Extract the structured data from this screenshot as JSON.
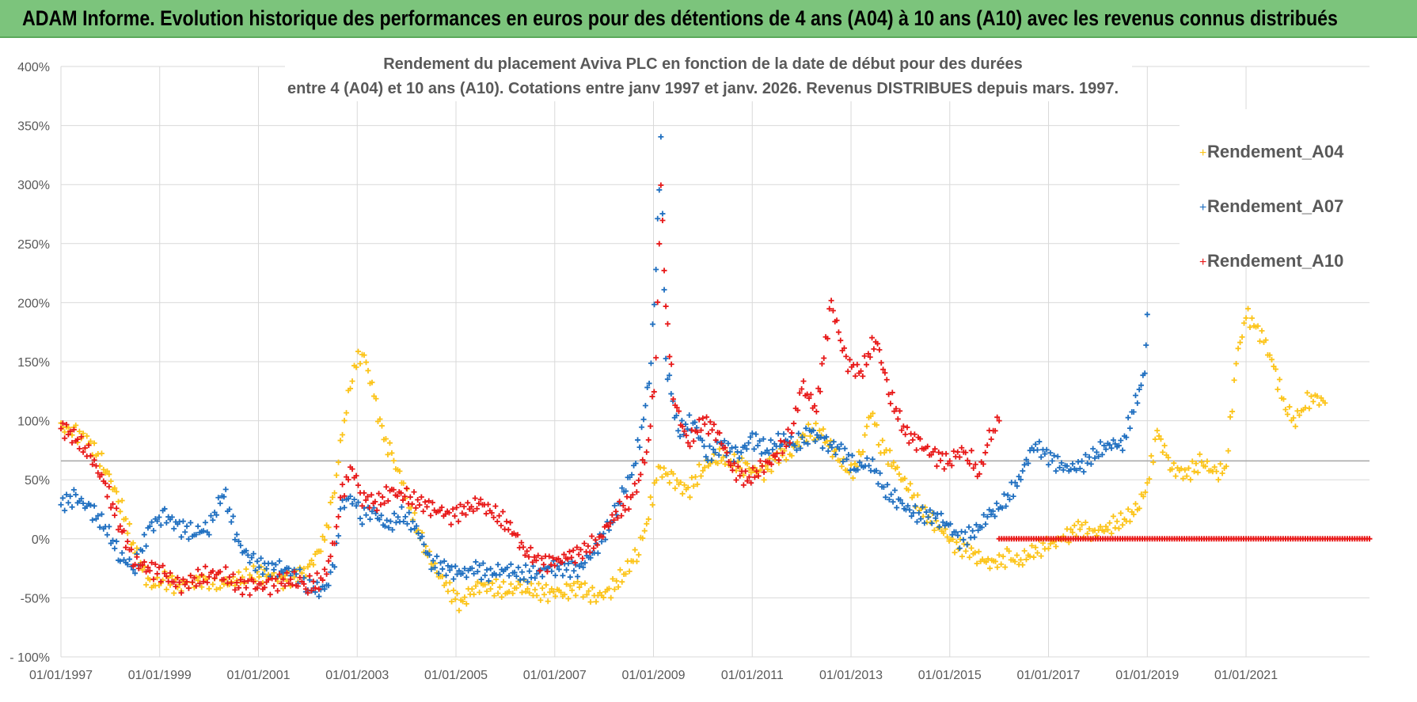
{
  "header": {
    "title": "ADAM Informe. Evolution historique des performances en euros pour des détentions de 4 ans (A04) à 10 ans (A10) avec les revenus connus distribués"
  },
  "colors": {
    "header_bg": "#7cc47c",
    "A04": "#fcc419",
    "A07": "#1f6fc0",
    "A10": "#e81818",
    "grid": "#d9d9d9",
    "reference_line": "#a6a6a6"
  },
  "chart_data": {
    "type": "scatter",
    "title_line1": "Rendement du placement Aviva PLC en fonction de la date de début pour des durées",
    "title_line2": "entre 4 (A04) et 10 ans (A10).  Cotations entre janv 1997 et janv. 2026. Revenus DISTRIBUES depuis mars. 1997.",
    "xlabel": "",
    "ylabel": "",
    "y_unit": "%",
    "ylim": [
      -100,
      400
    ],
    "xlim": [
      1997.0,
      2023.5
    ],
    "reference_line_y": 66,
    "x_tick_values": [
      1997,
      1999,
      2001,
      2003,
      2005,
      2007,
      2009,
      2011,
      2013,
      2015,
      2017,
      2019,
      2021
    ],
    "x_tick_labels": [
      "01/01/1997",
      "01/01/1999",
      "01/01/2001",
      "01/01/2003",
      "01/01/2005",
      "01/01/2007",
      "01/01/2009",
      "01/01/2011",
      "01/01/2013",
      "01/01/2015",
      "01/01/2017",
      "01/01/2019",
      "01/01/2021"
    ],
    "y_ticks": [
      -100,
      -50,
      0,
      50,
      100,
      150,
      200,
      250,
      300,
      350,
      400
    ],
    "y_tick_labels": [
      "- 100%",
      "-50%",
      "0%",
      "50%",
      "100%",
      "150%",
      "200%",
      "250%",
      "300%",
      "350%",
      "400%"
    ],
    "legend_position": "right",
    "series": [
      {
        "name": "Rendement_A04",
        "color": "#fcc419",
        "x": [
          1997.0,
          1997.3,
          1997.6,
          1997.9,
          1998.2,
          1998.5,
          1998.8,
          1999.1,
          1999.4,
          1999.7,
          2000.0,
          2000.3,
          2000.6,
          2000.9,
          2001.2,
          2001.5,
          2001.8,
          2002.0,
          2002.3,
          2002.5,
          2002.7,
          2002.9,
          2003.1,
          2003.3,
          2003.5,
          2003.7,
          2003.9,
          2004.2,
          2004.5,
          2004.8,
          2005.1,
          2005.4,
          2005.7,
          2006.0,
          2006.3,
          2006.6,
          2006.9,
          2007.2,
          2007.5,
          2007.8,
          2008.1,
          2008.4,
          2008.7,
          2008.9,
          2009.1,
          2009.4,
          2009.7,
          2010.0,
          2010.3,
          2010.6,
          2010.9,
          2011.2,
          2011.5,
          2011.8,
          2012.1,
          2012.4,
          2012.7,
          2013.0,
          2013.2,
          2013.4,
          2013.6,
          2013.9,
          2014.2,
          2014.5,
          2014.8,
          2015.1,
          2015.4,
          2015.7,
          2016.0,
          2016.2,
          2016.4,
          2016.7,
          2017.0,
          2017.3,
          2017.6,
          2017.9,
          2018.2,
          2018.5,
          2018.8,
          2019.0,
          2019.2,
          2019.5,
          2019.8,
          2020.1,
          2020.4,
          2020.6,
          2020.8,
          2021.0,
          2021.2,
          2021.4,
          2021.6,
          2021.8,
          2022.0,
          2022.2,
          2022.4,
          2022.6
        ],
        "y": [
          95,
          90,
          80,
          60,
          30,
          -10,
          -40,
          -35,
          -40,
          -35,
          -35,
          -38,
          -35,
          -30,
          -30,
          -35,
          -30,
          -25,
          -5,
          30,
          90,
          140,
          160,
          130,
          90,
          70,
          50,
          10,
          -20,
          -40,
          -55,
          -40,
          -40,
          -45,
          -40,
          -45,
          -45,
          -45,
          -40,
          -50,
          -45,
          -30,
          -10,
          20,
          60,
          50,
          40,
          60,
          70,
          65,
          60,
          55,
          70,
          75,
          90,
          90,
          70,
          55,
          70,
          110,
          80,
          60,
          40,
          20,
          10,
          -5,
          -10,
          -20,
          -20,
          -15,
          -20,
          -10,
          -5,
          0,
          10,
          5,
          10,
          15,
          25,
          45,
          90,
          60,
          55,
          65,
          55,
          60,
          150,
          190,
          180,
          165,
          140,
          110,
          100,
          115,
          120,
          115
        ]
      },
      {
        "name": "Rendement_A07",
        "color": "#1f6fc0",
        "x": [
          1997.0,
          1997.3,
          1997.6,
          1997.9,
          1998.2,
          1998.5,
          1998.8,
          1999.1,
          1999.4,
          1999.7,
          2000.0,
          2000.3,
          2000.6,
          2000.9,
          2001.2,
          2001.5,
          2001.8,
          2002.0,
          2002.3,
          2002.5,
          2002.7,
          2002.9,
          2003.1,
          2003.3,
          2003.6,
          2003.9,
          2004.2,
          2004.5,
          2004.8,
          2005.1,
          2005.4,
          2005.7,
          2006.0,
          2006.3,
          2006.6,
          2006.9,
          2007.2,
          2007.5,
          2007.8,
          2008.1,
          2008.4,
          2008.6,
          2008.8,
          2008.95,
          2009.05,
          2009.15,
          2009.25,
          2009.5,
          2009.8,
          2010.1,
          2010.4,
          2010.7,
          2011.0,
          2011.3,
          2011.6,
          2011.9,
          2012.2,
          2012.5,
          2012.8,
          2013.1,
          2013.4,
          2013.7,
          2014.0,
          2014.3,
          2014.6,
          2014.9,
          2015.2,
          2015.5,
          2015.8,
          2016.1,
          2016.4,
          2016.7,
          2017.0,
          2017.3,
          2017.6,
          2017.9,
          2018.2,
          2018.5,
          2018.8,
          2018.95,
          2019.0
        ],
        "y": [
          30,
          35,
          25,
          10,
          -15,
          -25,
          10,
          20,
          10,
          5,
          10,
          40,
          -5,
          -20,
          -25,
          -25,
          -30,
          -40,
          -45,
          -30,
          30,
          35,
          20,
          25,
          10,
          20,
          10,
          -20,
          -25,
          -30,
          -25,
          -30,
          -25,
          -30,
          -30,
          -25,
          -25,
          -25,
          -10,
          10,
          40,
          60,
          100,
          150,
          230,
          340,
          150,
          90,
          100,
          70,
          80,
          70,
          85,
          75,
          85,
          80,
          90,
          80,
          75,
          60,
          65,
          40,
          30,
          20,
          20,
          15,
          0,
          5,
          20,
          30,
          50,
          80,
          70,
          60,
          60,
          70,
          80,
          80,
          120,
          140,
          190
        ]
      },
      {
        "name": "Rendement_A10",
        "color": "#e81818",
        "x": [
          1997.0,
          1997.3,
          1997.6,
          1997.9,
          1998.2,
          1998.5,
          1998.8,
          1999.1,
          1999.4,
          1999.7,
          2000.0,
          2000.3,
          2000.6,
          2000.9,
          2001.2,
          2001.5,
          2001.8,
          2002.0,
          2002.3,
          2002.5,
          2002.7,
          2002.9,
          2003.1,
          2003.4,
          2003.7,
          2004.0,
          2004.3,
          2004.6,
          2004.9,
          2005.2,
          2005.5,
          2005.8,
          2006.1,
          2006.4,
          2006.7,
          2007.0,
          2007.3,
          2007.6,
          2007.9,
          2008.2,
          2008.5,
          2008.7,
          2008.9,
          2009.05,
          2009.15,
          2009.25,
          2009.4,
          2009.7,
          2010.0,
          2010.3,
          2010.6,
          2010.9,
          2011.2,
          2011.5,
          2011.8,
          2012.0,
          2012.3,
          2012.6,
          2012.9,
          2013.2,
          2013.5,
          2013.8,
          2014.1,
          2014.4,
          2014.7,
          2015.0,
          2015.2,
          2015.4,
          2015.6,
          2015.8,
          2016.0
        ],
        "y": [
          95,
          85,
          70,
          45,
          10,
          -20,
          -25,
          -30,
          -40,
          -35,
          -30,
          -30,
          -40,
          -40,
          -40,
          -35,
          -35,
          -40,
          -35,
          -10,
          40,
          60,
          35,
          30,
          40,
          35,
          30,
          25,
          20,
          25,
          30,
          20,
          10,
          -10,
          -20,
          -20,
          -15,
          -10,
          0,
          20,
          30,
          50,
          80,
          150,
          300,
          200,
          120,
          80,
          100,
          90,
          60,
          50,
          60,
          70,
          90,
          130,
          110,
          200,
          150,
          140,
          170,
          120,
          90,
          80,
          70,
          65,
          75,
          70,
          55,
          85,
          100
        ]
      }
    ],
    "flat_segment": {
      "series": "Rendement_A10",
      "x_start": 2016.0,
      "x_end": 2023.5,
      "y": 0
    }
  }
}
